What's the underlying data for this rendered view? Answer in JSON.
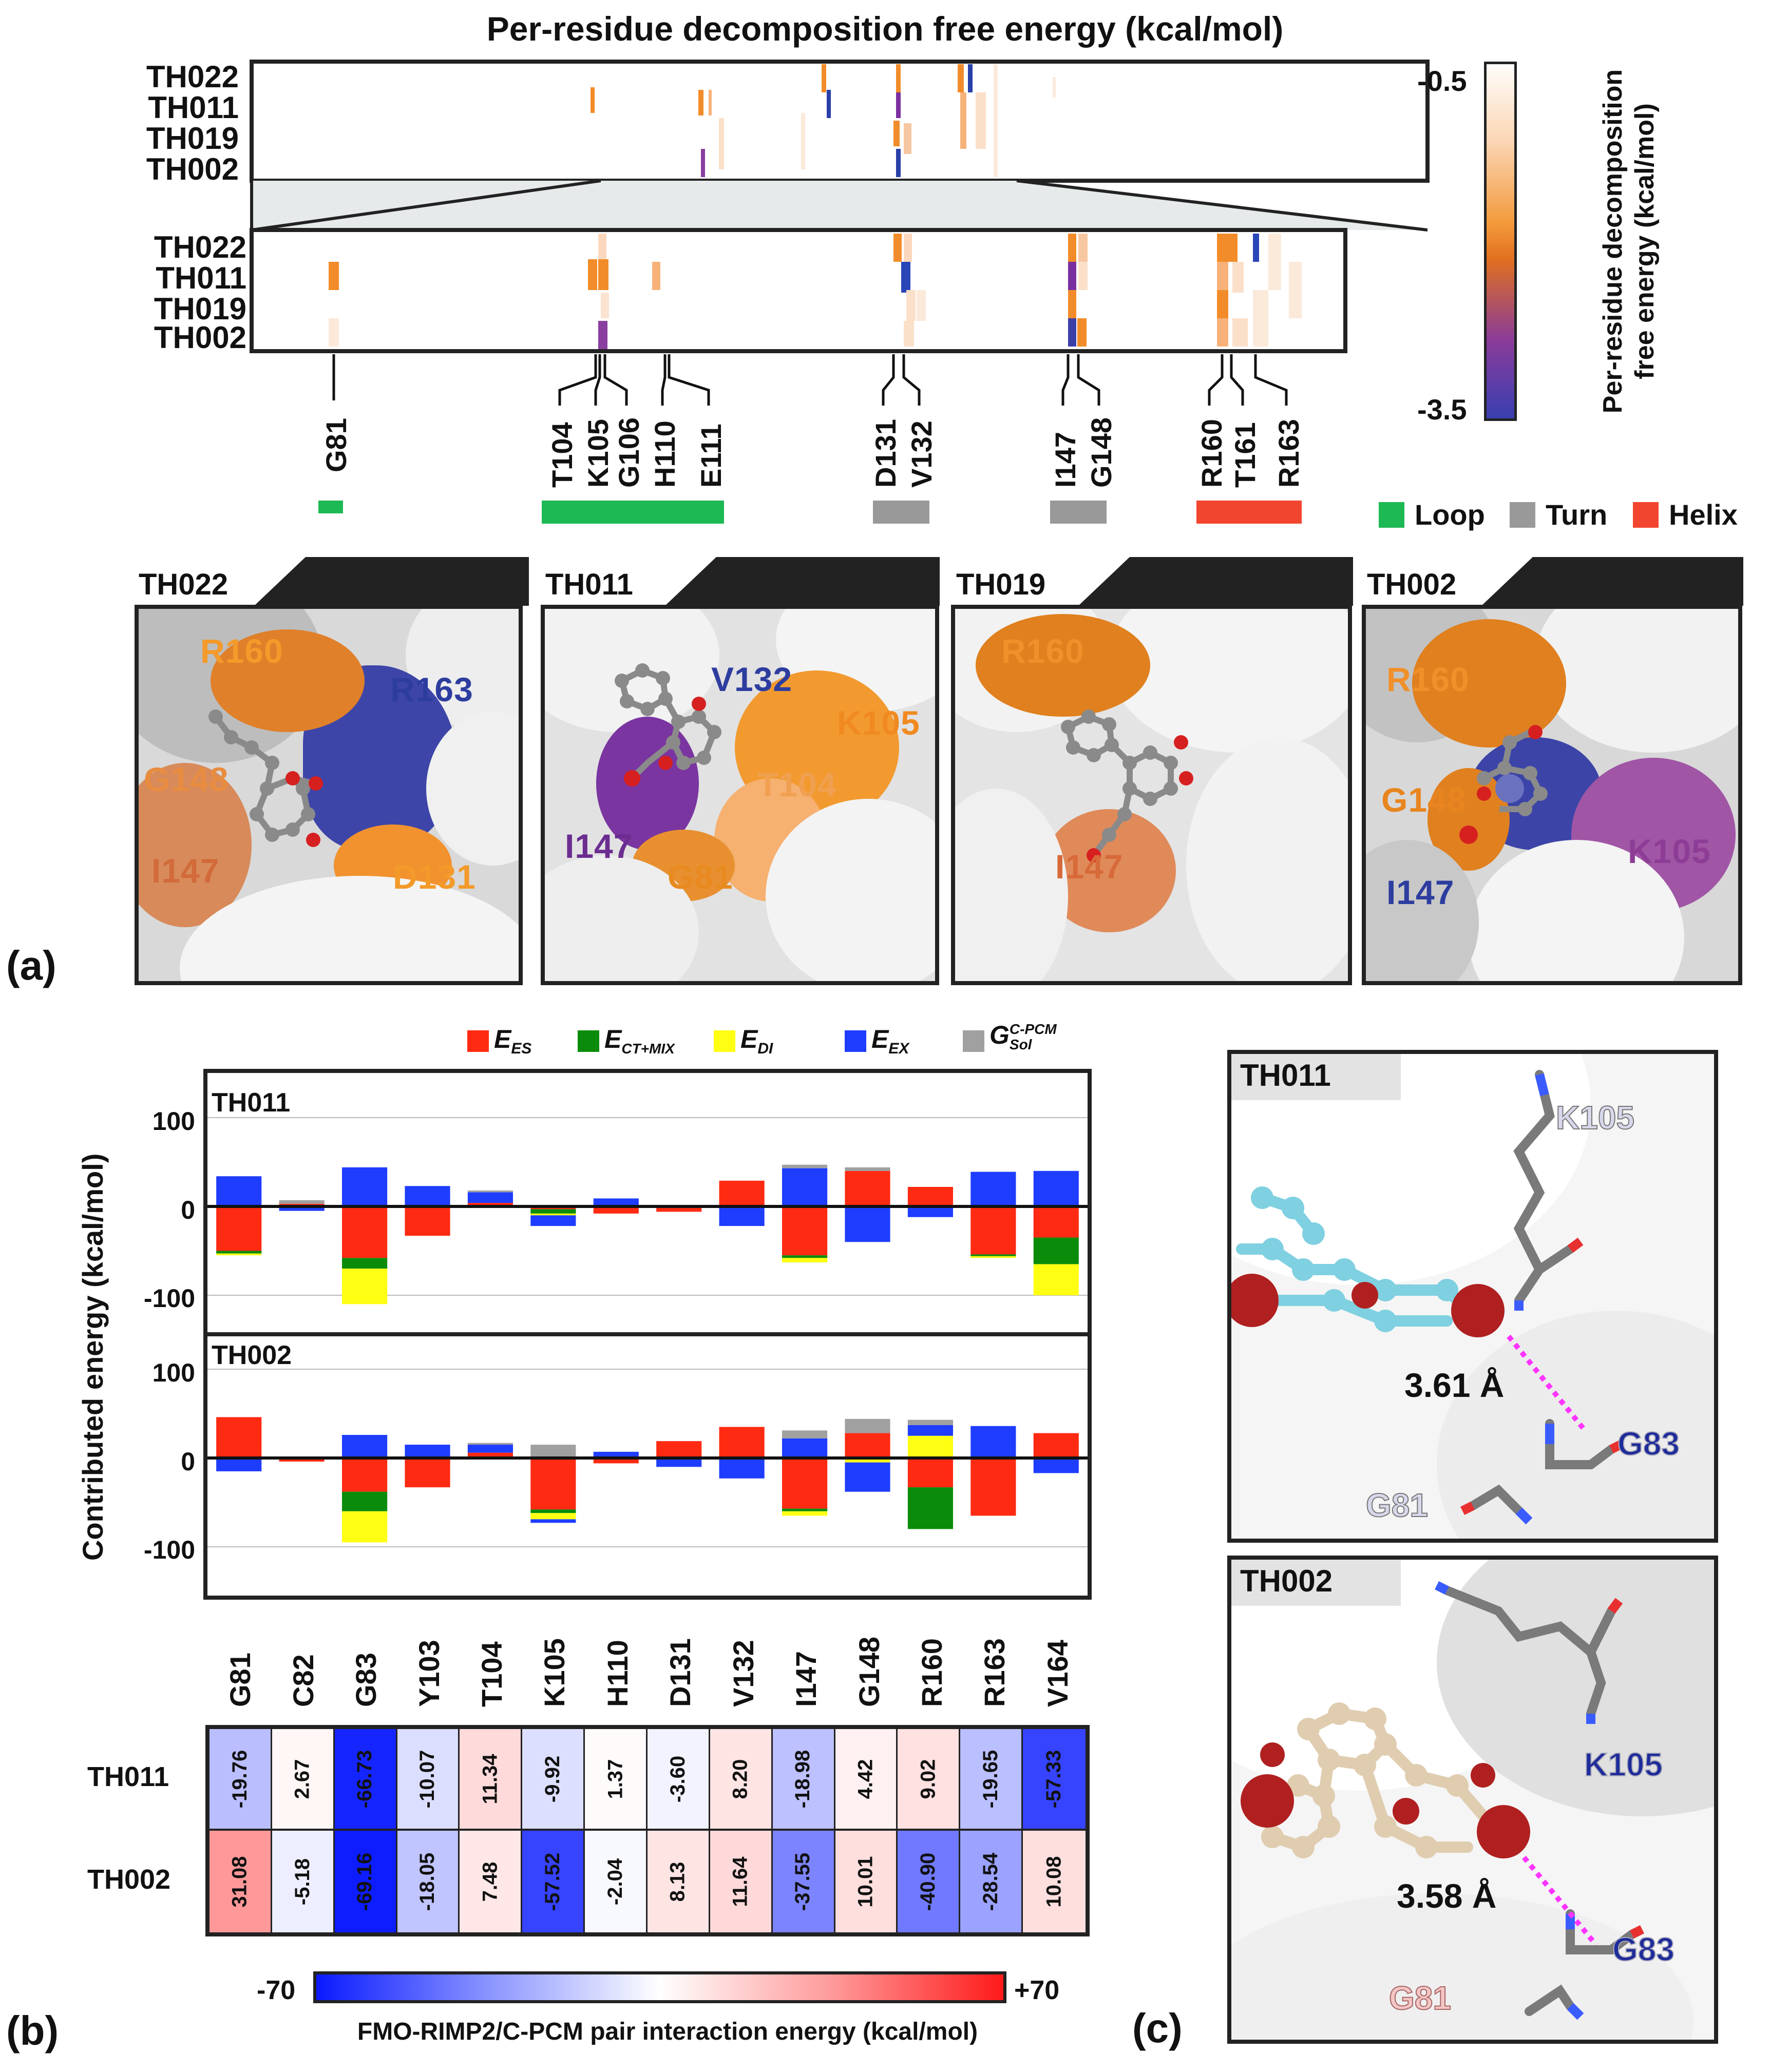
{
  "figure_a": {
    "title": "Per-residue decomposition free energy (kcal/mol)",
    "compounds": [
      "TH022",
      "TH011",
      "TH019",
      "TH002"
    ],
    "colorbar": {
      "max_label": "-0.5",
      "min_label": "-3.5",
      "label_line1": "Per-residue decomposition",
      "label_line2": "free energy (kcal/mol)"
    },
    "residues": [
      "G81",
      "T104",
      "K105",
      "G106",
      "H110",
      "E111",
      "D131",
      "V132",
      "I147",
      "G148",
      "R160",
      "T161",
      "R163"
    ],
    "secondary": [
      {
        "label": "Loop",
        "color": "#1db954"
      },
      {
        "label": "Turn",
        "color": "#999999"
      },
      {
        "label": "Helix",
        "color": "#f2452f"
      }
    ],
    "panels": [
      {
        "title": "TH022",
        "residues": [
          "R160",
          "R163",
          "G148",
          "I147",
          "D131"
        ]
      },
      {
        "title": "TH011",
        "residues": [
          "V132",
          "K105",
          "T104",
          "I147",
          "G81"
        ]
      },
      {
        "title": "TH019",
        "residues": [
          "R160",
          "I147"
        ]
      },
      {
        "title": "TH002",
        "residues": [
          "R160",
          "G148",
          "K105",
          "I147"
        ]
      }
    ],
    "panel_letter": "(a)"
  },
  "chart_data": {
    "type": "bar",
    "stacked": true,
    "ylabel": "Contributed energy (kcal/mol)",
    "ylim": [
      -150,
      150
    ],
    "yticks": [
      "100",
      "0",
      "-100"
    ],
    "categories": [
      "G81",
      "C82",
      "G83",
      "Y103",
      "T104",
      "K105",
      "H110",
      "D131",
      "V132",
      "I147",
      "G148",
      "R160",
      "R163",
      "V164"
    ],
    "legend": [
      {
        "key": "es",
        "main": "E",
        "sub": "ES",
        "color": "#ff2a12"
      },
      {
        "key": "ct",
        "main": "E",
        "sub": "CT+MIX",
        "color": "#0a8c0a"
      },
      {
        "key": "di",
        "main": "E",
        "sub": "DI",
        "color": "#ffff14"
      },
      {
        "key": "ex",
        "main": "E",
        "sub": "EX",
        "color": "#1f3dff"
      },
      {
        "key": "sol",
        "main": "G",
        "sub": "Sol",
        "sup": "C-PCM",
        "color": "#a0a0a0"
      }
    ],
    "panels": [
      {
        "name": "TH011",
        "es": [
          -50,
          3,
          -58,
          -33,
          4,
          -3,
          -8,
          -6,
          29,
          -55,
          40,
          22,
          -54,
          -35
        ],
        "ct": [
          -3,
          0,
          -12,
          0,
          0,
          -5,
          0,
          0,
          0,
          -3,
          0,
          0,
          -2,
          -30
        ],
        "di": [
          -2,
          0,
          -40,
          0,
          0,
          -2,
          0,
          0,
          0,
          -5,
          0,
          0,
          -2,
          -35
        ],
        "ex": [
          34,
          -5,
          44,
          23,
          12,
          -12,
          9,
          0,
          -22,
          43,
          -40,
          -12,
          39,
          40
        ],
        "sol": [
          0,
          4,
          0,
          0,
          2,
          0,
          0,
          0,
          0,
          4,
          4,
          0,
          0,
          0
        ]
      },
      {
        "name": "TH002",
        "es": [
          46,
          -4,
          -38,
          -33,
          6,
          -58,
          -6,
          19,
          35,
          -57,
          28,
          -33,
          -65,
          28
        ],
        "ct": [
          0,
          0,
          -22,
          0,
          0,
          -4,
          0,
          0,
          0,
          -3,
          0,
          -47,
          0,
          0
        ],
        "di": [
          0,
          0,
          -35,
          0,
          0,
          -7,
          0,
          0,
          0,
          -5,
          -5,
          25,
          0,
          0
        ],
        "ex": [
          -15,
          0,
          26,
          15,
          9,
          -4,
          7,
          -10,
          -23,
          22,
          -33,
          12,
          36,
          -17
        ],
        "sol": [
          0,
          0,
          0,
          0,
          2,
          15,
          0,
          0,
          0,
          9,
          16,
          6,
          0,
          0
        ]
      }
    ],
    "heatmap": {
      "rows": [
        "TH011",
        "TH002"
      ],
      "values": [
        [
          "-19.76",
          "2.67",
          "-66.73",
          "-10.07",
          "11.34",
          "-9.92",
          "1.37",
          "-3.60",
          "8.20",
          "-18.98",
          "4.42",
          "9.02",
          "-19.65",
          "-57.33"
        ],
        [
          "31.08",
          "-5.18",
          "-69.16",
          "-18.05",
          "7.48",
          "-57.52",
          "-2.04",
          "8.13",
          "11.64",
          "-37.55",
          "10.01",
          "-40.90",
          "-28.54",
          "10.08"
        ]
      ],
      "range": [
        -70,
        70
      ],
      "colorbar_min": "-70",
      "colorbar_max": "+70",
      "colorbar_label": "FMO-RIMP2/C-PCM pair interaction energy (kcal/mol)"
    }
  },
  "figure_b_letter": "(b)",
  "figure_c": {
    "panels": [
      {
        "title": "TH011",
        "labels": {
          "top": "K105",
          "dist": "3.61 Å",
          "g83": "G83",
          "g81": "G81"
        }
      },
      {
        "title": "TH002",
        "labels": {
          "top": "K105",
          "dist": "3.58 Å",
          "g83": "G83",
          "g81": "G81"
        }
      }
    ],
    "panel_letter": "(c)"
  }
}
